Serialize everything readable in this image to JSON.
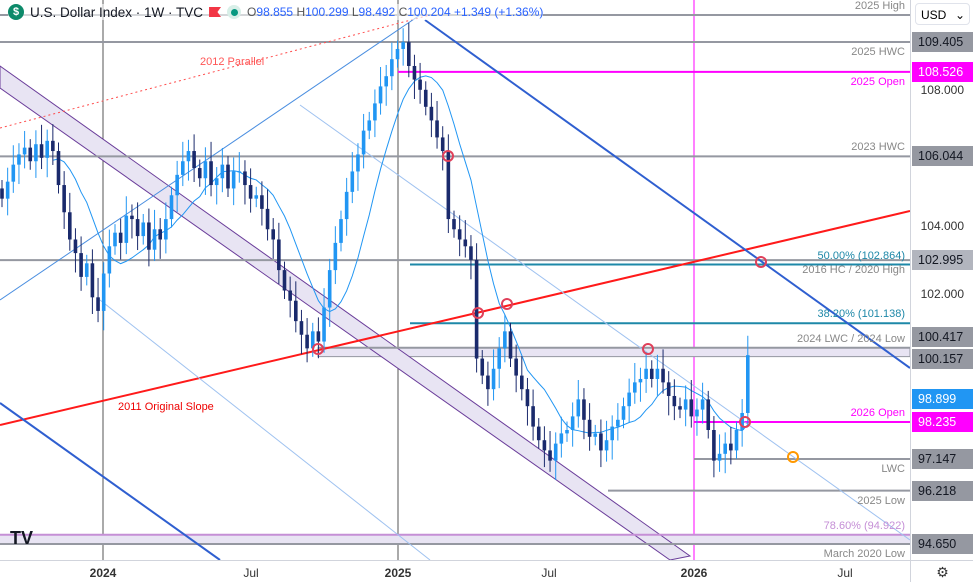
{
  "header": {
    "symbol": "U.S. Dollar Index · 1W · TVC",
    "open_label": "O",
    "open": "98.855",
    "high_label": "H",
    "high": "100.299",
    "low_label": "L",
    "low": "98.492",
    "close_label": "C",
    "close": "100.204",
    "change": "+1.349 (+1.36%)"
  },
  "currency": "USD",
  "colors": {
    "up": "#2196f3",
    "down": "#1a2a6c",
    "magenta": "#ff00ff",
    "gray_level": "#9598a1",
    "teal": "#1e88a8",
    "red_line": "#ff1a1a",
    "band": "#e8e4f3"
  },
  "price_axis": {
    "ticks": [
      "108.000",
      "104.000",
      "102.000"
    ],
    "tags": [
      {
        "value": "109.405",
        "bg": "#9598a1",
        "fg": "#131722"
      },
      {
        "value": "108.526",
        "bg": "#ff00ff",
        "fg": "#ffffff"
      },
      {
        "value": "106.044",
        "bg": "#9598a1",
        "fg": "#131722"
      },
      {
        "value": "102.995",
        "bg": "#b2b5be",
        "fg": "#131722"
      },
      {
        "value": "100.417",
        "bg": "#9598a1",
        "fg": "#131722"
      },
      {
        "value": "100.157",
        "bg": "#9598a1",
        "fg": "#131722"
      },
      {
        "value": "98.899",
        "bg": "#2196f3",
        "fg": "#ffffff"
      },
      {
        "value": "98.235",
        "bg": "#ff00ff",
        "fg": "#ffffff"
      },
      {
        "value": "97.147",
        "bg": "#9598a1",
        "fg": "#131722"
      },
      {
        "value": "96.218",
        "bg": "#9598a1",
        "fg": "#131722"
      },
      {
        "value": "94.650",
        "bg": "#9598a1",
        "fg": "#131722"
      }
    ]
  },
  "time_axis": [
    "2024",
    "Jul",
    "2025",
    "Jul",
    "2026",
    "Jul"
  ],
  "levels": [
    {
      "price": 110.2,
      "label": "2025 High",
      "color": "#9598a1"
    },
    {
      "price": 109.405,
      "label": "2025 HWC",
      "color": "#9598a1"
    },
    {
      "price": 108.526,
      "label": "2025 Open",
      "color": "#ff00ff"
    },
    {
      "price": 106.044,
      "label": "2023 HWC",
      "color": "#9598a1"
    },
    {
      "price": 102.995,
      "label": "2016 HC / 2020 High",
      "color": "#9598a1"
    },
    {
      "price": 102.864,
      "label": "50.00% (102.864)",
      "color": "#1e88a8"
    },
    {
      "price": 101.138,
      "label": "38.20% (101.138)",
      "color": "#1e88a8"
    },
    {
      "price": 100.417,
      "label": "2024 LWC / 2024 Low",
      "color": "#9598a1"
    },
    {
      "price": 98.235,
      "label": "2026 Open",
      "color": "#ff00ff"
    },
    {
      "price": 97.147,
      "label": "LWC",
      "color": "#9598a1"
    },
    {
      "price": 96.218,
      "label": "2025 Low",
      "color": "#9598a1"
    },
    {
      "price": 94.922,
      "label": "78.60% (94.922)",
      "color": "#c58fd6"
    },
    {
      "price": 94.65,
      "label": "March 2020 Low",
      "color": "#9598a1"
    }
  ],
  "trendline_labels": {
    "red": "2011 Original Slope",
    "dotted": "2012 Parallel"
  },
  "chart_data": {
    "type": "candlestick",
    "interval": "1W",
    "note_axis": "price USD",
    "weekly_closes": [
      104.8,
      105.3,
      105.8,
      106.1,
      106.3,
      105.9,
      106.4,
      106.0,
      106.5,
      106.2,
      105.2,
      104.4,
      103.6,
      103.2,
      102.5,
      102.9,
      101.9,
      101.5,
      102.6,
      103.4,
      103.8,
      103.5,
      104.3,
      104.2,
      103.7,
      104.1,
      103.3,
      103.9,
      103.6,
      104.2,
      104.9,
      105.5,
      105.9,
      106.2,
      105.7,
      105.4,
      105.9,
      105.2,
      105.4,
      105.8,
      105.1,
      105.6,
      105.6,
      105.2,
      104.8,
      104.9,
      104.5,
      103.9,
      103.6,
      102.7,
      102.1,
      101.8,
      101.2,
      100.8,
      100.4,
      100.9,
      100.6,
      101.6,
      102.7,
      103.5,
      104.2,
      105.0,
      105.6,
      106.1,
      106.8,
      107.1,
      107.6,
      108.1,
      108.4,
      108.9,
      109.2,
      109.4,
      108.7,
      108.3,
      108.0,
      107.5,
      107.1,
      106.6,
      106.2,
      104.2,
      103.9,
      103.6,
      103.4,
      103.0,
      100.1,
      99.6,
      99.2,
      99.8,
      100.4,
      100.9,
      100.1,
      99.6,
      99.2,
      98.7,
      98.1,
      97.7,
      97.4,
      97.1,
      97.6,
      97.9,
      98.0,
      98.4,
      98.9,
      98.3,
      97.8,
      97.9,
      97.4,
      97.7,
      98.1,
      98.3,
      98.7,
      99.1,
      99.4,
      99.5,
      99.8,
      99.5,
      99.8,
      99.4,
      99.0,
      98.7,
      98.6,
      98.9,
      98.4,
      98.6,
      98.9,
      98.0,
      97.1,
      97.3,
      97.6,
      97.4,
      98.0,
      98.5,
      100.2
    ],
    "ylim": [
      93.9,
      110.6
    ]
  }
}
